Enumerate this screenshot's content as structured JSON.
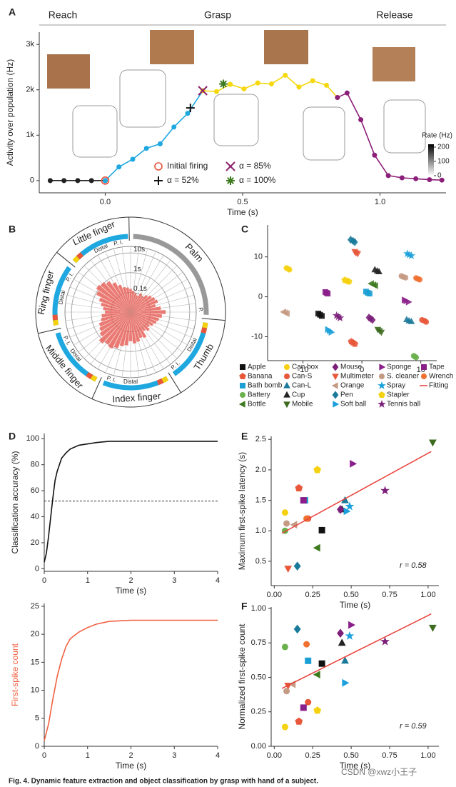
{
  "chart_data": [
    {
      "type": "line",
      "panel": "A",
      "phases": [
        "Reach",
        "Grasp",
        "Release"
      ],
      "xlabel": "Time (s)",
      "ylabel": "Activity over population (Hz)",
      "xlim": [
        -0.24,
        1.24
      ],
      "ylim": [
        -270,
        3270
      ],
      "xticks": [
        {
          "value": 0,
          "label": "0.0"
        },
        0.5,
        {
          "value": 1,
          "label": "1.0"
        }
      ],
      "yticks": [
        0,
        {
          "value": 1000,
          "label": "1k"
        },
        {
          "value": 2000,
          "label": "2k"
        },
        {
          "value": 3000,
          "label": "3k"
        }
      ],
      "series": [
        {
          "color": "#222222",
          "x": [
            -0.2,
            -0.15,
            -0.1,
            -0.05,
            0
          ],
          "values": [
            0,
            0,
            0,
            0,
            0
          ]
        },
        {
          "color": "#1fa8e0",
          "x": [
            0,
            0.05,
            0.1,
            0.15,
            0.2,
            0.25,
            0.3,
            0.355
          ],
          "values": [
            0,
            300,
            470,
            710,
            810,
            1180,
            1480,
            1980
          ]
        },
        {
          "color": "#f5d80f",
          "x": [
            0.355,
            0.405,
            0.455,
            0.505,
            0.555,
            0.605,
            0.655,
            0.705,
            0.755,
            0.805,
            0.845
          ],
          "values": [
            1980,
            1960,
            2120,
            2020,
            2150,
            2130,
            2320,
            2060,
            2200,
            2100,
            1830
          ]
        },
        {
          "color": "#8b1f7a",
          "x": [
            0.845,
            0.88,
            0.93,
            0.98,
            1.03,
            1.08,
            1.13,
            1.18,
            1.225
          ],
          "values": [
            1830,
            1930,
            1340,
            560,
            110,
            60,
            40,
            20,
            10
          ]
        }
      ],
      "annotations": [
        {
          "label": "Initial firing",
          "x": 0,
          "y": 0,
          "symbol": "circle-open",
          "color": "#e8503a"
        },
        {
          "label": "α = 85%",
          "x": 0.355,
          "y": 1980,
          "symbol": "x",
          "color": "#8b1f6a"
        },
        {
          "label": "α = 52%",
          "x": 0.31,
          "y": 1600,
          "symbol": "plus",
          "color": "#111111"
        },
        {
          "label": "α = 100%",
          "x": 0.43,
          "y": 2130,
          "symbol": "asterisk",
          "color": "#3d7a1f"
        }
      ],
      "colorbar": {
        "title": "Rate (Hz)",
        "lim": [
          0,
          220
        ],
        "ticks": [
          0,
          100,
          200
        ]
      }
    },
    {
      "type": "polar",
      "panel": "B",
      "color": "#e8665e",
      "regions": [
        "Palm",
        "Thumb",
        "Index finger",
        "Middle finger",
        "Ring finger",
        "Little finger"
      ],
      "sublabels": [
        "Distal",
        "P.",
        "P. I."
      ],
      "rlim": [
        0.01,
        21.5
      ],
      "log": true,
      "rticks": [
        {
          "value": 0.1,
          "label": "0.1s"
        },
        {
          "value": 1,
          "label": "1s"
        },
        {
          "value": 10,
          "label": "10s"
        }
      ],
      "values": [
        0.15,
        0.12,
        0.1,
        0.08,
        0.12,
        0.1,
        0.15,
        0.2,
        0.25,
        0.3,
        0.2,
        0.35,
        0.6,
        0.4,
        0.3,
        0.25,
        0.2,
        0.15,
        0.2,
        0.15,
        0.3,
        0.25,
        0.35,
        0.4,
        0.3,
        0.5,
        0.6,
        0.9,
        1.2,
        1.0,
        1.4,
        0.8,
        0.6,
        0.5,
        0.35,
        0.3,
        0.2,
        0.25,
        0.35,
        0.5,
        0.9,
        1.3,
        1.1,
        0.8,
        0.5,
        0.3,
        0.2,
        0.18
      ]
    },
    {
      "type": "scatter",
      "panel": "C",
      "xlim": [
        -16,
        12.7
      ],
      "ylim": [
        -16,
        18
      ],
      "xticks": [
        -10,
        0,
        10
      ],
      "yticks": [
        -10,
        0,
        10
      ],
      "fit_name": "Fitting",
      "series": [
        {
          "name": "Apple",
          "color": "#111111",
          "marker": "square",
          "x": [
            -7.4,
            -6.8,
            -7.1
          ],
          "values": [
            -4.2,
            -4.8,
            -4.5
          ]
        },
        {
          "name": "Banana",
          "color": "#e8573a",
          "marker": "pentagon",
          "x": [
            -1.8,
            -1.2,
            -1.5
          ],
          "values": [
            -11.2,
            -11.8,
            -11.5
          ]
        },
        {
          "name": "Bath bomb",
          "color": "#1a9fd4",
          "marker": "square",
          "x": [
            0.7,
            1.3,
            1.0
          ],
          "values": [
            1.3,
            0.8,
            1.0
          ]
        },
        {
          "name": "Battery",
          "color": "#6ab04c",
          "marker": "circle",
          "x": [
            8.8,
            9.2,
            9.0
          ],
          "values": [
            -14.8,
            -15.2,
            -15.0
          ]
        },
        {
          "name": "Bottle",
          "color": "#3d7a1f",
          "marker": "triangle-left",
          "x": [
            1.6,
            2.3,
            2.0
          ],
          "values": [
            3.3,
            2.8,
            3.0
          ]
        },
        {
          "name": "Can box",
          "color": "#f5d10f",
          "marker": "circle",
          "x": [
            -12.8,
            -12.3,
            -12.5
          ],
          "values": [
            7.2,
            6.8,
            7.0
          ]
        },
        {
          "name": "Can-S",
          "color": "#e8573a",
          "marker": "circle",
          "x": [
            10.2,
            10.9,
            10.6
          ],
          "values": [
            -5.8,
            -6.3,
            -6.0
          ]
        },
        {
          "name": "Can-L",
          "color": "#1a7a9a",
          "marker": "triangle-up",
          "x": [
            7.6,
            8.4,
            8.0
          ],
          "values": [
            -5.7,
            -6.2,
            -6.0
          ]
        },
        {
          "name": "Cup",
          "color": "#222222",
          "marker": "triangle-up",
          "x": [
            2.2,
            2.9,
            2.6
          ],
          "values": [
            6.8,
            6.3,
            6.5
          ]
        },
        {
          "name": "Mobile",
          "color": "#3d6b1f",
          "marker": "triangle-down",
          "x": [
            2.7,
            3.3,
            3.0
          ],
          "values": [
            -8.2,
            -8.9,
            -8.5
          ]
        },
        {
          "name": "Mouse",
          "color": "#7b1f7a",
          "marker": "diamond",
          "x": [
            1.2,
            1.8,
            1.5
          ],
          "values": [
            -5.2,
            -5.8,
            -5.5
          ]
        },
        {
          "name": "Multimeter",
          "color": "#e8573a",
          "marker": "triangle-down",
          "x": [
            -1.2,
            -0.7,
            -1.0
          ],
          "values": [
            11.3,
            10.8,
            11.0
          ]
        },
        {
          "name": "Orange",
          "color": "#c49a82",
          "marker": "triangle-left",
          "x": [
            -13.3,
            -12.7,
            -13.0
          ],
          "values": [
            -3.8,
            -4.2,
            -4.0
          ]
        },
        {
          "name": "Pen",
          "color": "#1a7a9a",
          "marker": "diamond",
          "x": [
            -1.9,
            -1.2,
            -1.5
          ],
          "values": [
            14.3,
            13.7,
            14.0
          ]
        },
        {
          "name": "Soft ball",
          "color": "#1aa0dc",
          "marker": "triangle-right",
          "x": [
            -5.8,
            -5.2,
            -5.5
          ],
          "values": [
            -8.2,
            -8.9,
            -8.5
          ]
        },
        {
          "name": "Sponge",
          "color": "#8b1f8a",
          "marker": "triangle-right",
          "x": [
            7.2,
            7.9,
            7.5
          ],
          "values": [
            -0.8,
            -1.3,
            -1.0
          ]
        },
        {
          "name": "S. cleaner",
          "color": "#c49a82",
          "marker": "circle",
          "x": [
            6.7,
            7.4,
            7.0
          ],
          "values": [
            5.2,
            4.8,
            5.0
          ]
        },
        {
          "name": "Spray",
          "color": "#1aa0dc",
          "marker": "star",
          "x": [
            7.7,
            8.4,
            8.0
          ],
          "values": [
            10.8,
            10.3,
            10.5
          ]
        },
        {
          "name": "Stapler",
          "color": "#f5d10f",
          "marker": "pentagon",
          "x": [
            -2.9,
            -2.2,
            -2.5
          ],
          "values": [
            4.2,
            3.8,
            4.0
          ]
        },
        {
          "name": "Tennis ball",
          "color": "#7b1f7a",
          "marker": "star",
          "x": [
            -4.3,
            -3.7,
            -4.0
          ],
          "values": [
            -4.7,
            -5.3,
            -5.0
          ]
        },
        {
          "name": "Tape",
          "color": "#8b1f8a",
          "marker": "square",
          "x": [
            -6.2,
            -5.8,
            -6.0
          ],
          "values": [
            1.2,
            0.8,
            1.0
          ]
        },
        {
          "name": "Wrench",
          "color": "#f07030",
          "marker": "circle",
          "x": [
            9.2,
            9.8,
            9.5
          ],
          "values": [
            4.7,
            4.3,
            4.5
          ]
        }
      ]
    },
    {
      "type": "line",
      "panel": "D",
      "xlabel": "Time (s)",
      "ylabel": "Classification accuracy (%)",
      "xlim": [
        0,
        4
      ],
      "ylim": [
        -2,
        104
      ],
      "xticks": [
        0,
        1,
        2,
        3,
        4
      ],
      "yticks": [
        0,
        20,
        40,
        60,
        80,
        100
      ],
      "hline": 52,
      "series": [
        {
          "color": "#111111",
          "x": [
            0,
            0.05,
            0.1,
            0.15,
            0.2,
            0.25,
            0.3,
            0.4,
            0.5,
            0.6,
            0.8,
            1,
            1.2,
            1.5,
            2,
            3,
            4
          ],
          "values": [
            5,
            12,
            25,
            40,
            55,
            68,
            75,
            85,
            89,
            92,
            95,
            96,
            97,
            98,
            98,
            98,
            98
          ]
        }
      ]
    },
    {
      "type": "line",
      "xlabel": "Time (s)",
      "ylabel": "First-spike count",
      "ylabel_color": "#f06040",
      "xlim": [
        0,
        4
      ],
      "ylim": [
        0,
        25.5
      ],
      "xticks": [
        0,
        1,
        2,
        3,
        4
      ],
      "yticks": [
        0,
        5,
        10,
        15,
        20,
        25
      ],
      "series": [
        {
          "color": "#f06040",
          "x": [
            0,
            0.1,
            0.2,
            0.3,
            0.4,
            0.5,
            0.6,
            0.8,
            1,
            1.2,
            1.5,
            2,
            3,
            4
          ],
          "values": [
            1,
            4,
            8.5,
            12.5,
            15.5,
            17.8,
            19.2,
            20.4,
            21.2,
            21.8,
            22.3,
            22.5,
            22.5,
            22.5
          ]
        }
      ]
    },
    {
      "type": "scatter",
      "panel": "E",
      "xlabel": "Time (s)",
      "ylabel": "Maximum first-spike latency (s)",
      "xlim": [
        -0.02,
        1.07
      ],
      "ylim": [
        0.1,
        2.55
      ],
      "xticks": [
        {
          "value": 0,
          "label": "0.00"
        },
        {
          "value": 0.25,
          "label": "0.25"
        },
        {
          "value": 0.5,
          "label": "0.50"
        },
        {
          "value": 0.75,
          "label": "0.75"
        },
        {
          "value": 1,
          "label": "1.00"
        }
      ],
      "yticks": [
        0.5,
        {
          "value": 1,
          "label": "1.0"
        },
        1.5,
        {
          "value": 2,
          "label": "2.0"
        },
        2.5
      ],
      "annotation": "r = 0.58",
      "x": [
        0.31,
        0.16,
        0.2,
        0.07,
        0.28,
        0.07,
        0.22,
        0.46,
        0.44,
        1.03,
        0.43,
        0.09,
        0.13,
        0.15,
        0.47,
        0.51,
        0.08,
        0.49,
        0.28,
        0.72,
        0.19,
        0.21
      ],
      "values": [
        1.01,
        1.7,
        1.5,
        1.0,
        0.72,
        1.3,
        1.2,
        1.5,
        1.35,
        2.45,
        1.35,
        0.38,
        1.1,
        0.42,
        1.32,
        2.1,
        1.12,
        1.4,
        2.0,
        1.66,
        1.5,
        1.2
      ],
      "fit": {
        "color": "#e8403a",
        "x": [
          0.05,
          1.02
        ],
        "values": [
          0.96,
          2.3
        ]
      }
    },
    {
      "type": "scatter",
      "panel": "F",
      "xlabel": "Time (s)",
      "ylabel": "Normalized first-spike count",
      "xlim": [
        -0.02,
        1.07
      ],
      "ylim": [
        0,
        1.01
      ],
      "xticks": [
        {
          "value": 0,
          "label": "0.00"
        },
        {
          "value": 0.25,
          "label": "0.25"
        },
        {
          "value": 0.5,
          "label": "0.50"
        },
        {
          "value": 0.75,
          "label": "0.75"
        },
        {
          "value": 1,
          "label": "1.00"
        }
      ],
      "yticks": [
        {
          "value": 0,
          "label": "0.00"
        },
        0.25,
        {
          "value": 0.5,
          "label": "0.50"
        },
        0.75,
        {
          "value": 1,
          "label": "1.00"
        }
      ],
      "annotation": "r = 0.59",
      "x": [
        0.31,
        0.16,
        0.22,
        0.07,
        0.28,
        0.07,
        0.22,
        0.46,
        0.44,
        1.03,
        0.43,
        0.09,
        0.12,
        0.15,
        0.46,
        0.5,
        0.08,
        0.49,
        0.28,
        0.72,
        0.19,
        0.21
      ],
      "values": [
        0.6,
        0.18,
        0.62,
        0.72,
        0.52,
        0.14,
        0.32,
        0.62,
        0.75,
        0.86,
        0.82,
        0.44,
        0.45,
        0.85,
        0.46,
        0.88,
        0.4,
        0.8,
        0.26,
        0.76,
        0.28,
        0.74
      ],
      "fit": {
        "color": "#e8403a",
        "x": [
          0.05,
          1.02
        ],
        "values": [
          0.42,
          0.96
        ]
      }
    }
  ],
  "caption": "Fig. 4. Dynamic feature extraction and object classification by grasp with hand of a subject.",
  "watermark": "CSDN @xwz小王子"
}
